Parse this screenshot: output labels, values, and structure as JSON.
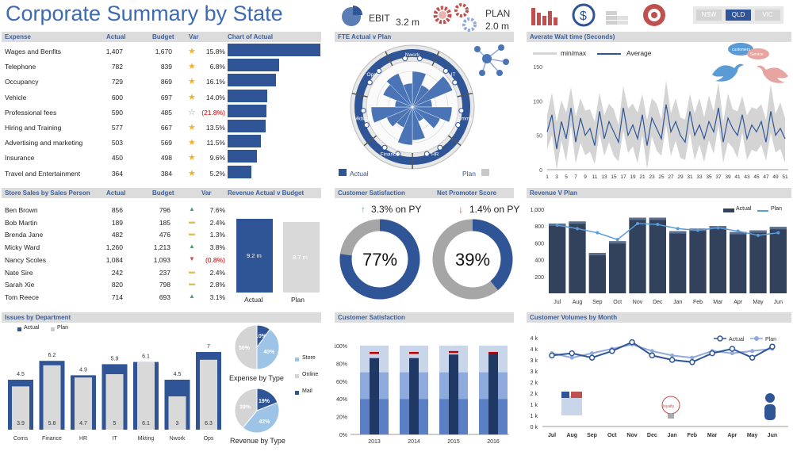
{
  "title": "Corporate Summary by State",
  "kpi": {
    "ebit_label": "EBIT",
    "ebit_value": "3.2 m",
    "plan_label": "PLAN",
    "plan_value": "2.0 m"
  },
  "states": [
    "NSW",
    "QLD",
    "VIC"
  ],
  "selected_state": "QLD",
  "colors": {
    "accent": "#2f5597",
    "dark": "#32425c",
    "grey": "#d9d9d9",
    "title": "#3e6ab0"
  },
  "expense": {
    "headers": [
      "Expense",
      "Actual",
      "Budget",
      "Var",
      "Chart of Actual"
    ],
    "rows": [
      {
        "name": "Wages and Benfits",
        "actual": "1,407",
        "budget": "1,670",
        "var": "15.8%",
        "v": 1407
      },
      {
        "name": "Telephone",
        "actual": "782",
        "budget": "839",
        "var": "6.8%",
        "v": 782
      },
      {
        "name": "Occupancy",
        "actual": "729",
        "budget": "869",
        "var": "16.1%",
        "v": 729
      },
      {
        "name": "Vehicle",
        "actual": "600",
        "budget": "697",
        "var": "14.0%",
        "v": 600
      },
      {
        "name": "Professional fees",
        "actual": "590",
        "budget": "485",
        "var": "(21.8%)",
        "v": 590
      },
      {
        "name": "Hiring and Training",
        "actual": "577",
        "budget": "667",
        "var": "13.5%",
        "v": 577
      },
      {
        "name": "Advertising and marketing",
        "actual": "503",
        "budget": "569",
        "var": "11.5%",
        "v": 503
      },
      {
        "name": "Insurance",
        "actual": "450",
        "budget": "498",
        "var": "9.6%",
        "v": 450
      },
      {
        "name": "Travel and Entertainment",
        "actual": "364",
        "budget": "384",
        "var": "5.2%",
        "v": 364
      }
    ]
  },
  "sales": {
    "headers": [
      "Store Sales by Sales Person",
      "Actual",
      "Budget",
      "Var",
      "Revenue Actual v Budget"
    ],
    "rows": [
      {
        "name": "Ben Brown",
        "actual": "856",
        "budget": "796",
        "var": "7.6%"
      },
      {
        "name": "Bob Martin",
        "actual": "189",
        "budget": "185",
        "var": "2.4%"
      },
      {
        "name": "Brenda Jane",
        "actual": "482",
        "budget": "476",
        "var": "1.3%"
      },
      {
        "name": "Micky Ward",
        "actual": "1,260",
        "budget": "1,213",
        "var": "3.8%"
      },
      {
        "name": "Nancy Scoles",
        "actual": "1,084",
        "budget": "1,093",
        "var": "(0.8%)"
      },
      {
        "name": "Nate Sire",
        "actual": "242",
        "budget": "237",
        "var": "2.4%"
      },
      {
        "name": "Sarah Xie",
        "actual": "820",
        "budget": "798",
        "var": "2.8%"
      },
      {
        "name": "Tom Reece",
        "actual": "714",
        "budget": "693",
        "var": "3.1%"
      }
    ],
    "actual_label": "9.2 m",
    "plan_label": "8.7 m",
    "x_actual": "Actual",
    "x_plan": "Plan"
  },
  "fte": {
    "title": "FTE Actual v Plan",
    "segments": [
      "Nwork",
      "IT",
      "Comms",
      "HR",
      "Finance",
      "Mkting",
      "Ops"
    ],
    "legend_actual": "Actual",
    "legend_plan": "Plan"
  },
  "wait": {
    "title": "Averate Wait time (Seconds)",
    "legend_minmax": "min/max",
    "legend_avg": "Average",
    "yticks": [
      "0",
      "50",
      "100",
      "150"
    ],
    "xticks": [
      "1",
      "3",
      "5",
      "7",
      "9",
      "11",
      "13",
      "15",
      "17",
      "19",
      "21",
      "23",
      "25",
      "27",
      "29",
      "31",
      "33",
      "35",
      "37",
      "39",
      "41",
      "43",
      "45",
      "47",
      "49",
      "51"
    ],
    "avg": [
      55,
      80,
      30,
      70,
      45,
      90,
      40,
      75,
      50,
      60,
      35,
      85,
      45,
      70,
      55,
      40,
      90,
      50,
      65,
      45,
      80,
      35,
      75,
      60,
      45,
      95,
      55,
      70,
      50,
      40,
      85,
      50,
      65,
      45,
      70,
      55,
      90,
      40,
      75,
      60,
      50,
      80,
      45,
      65,
      55,
      70,
      40,
      85,
      50,
      60,
      45
    ],
    "tweet1": "customers",
    "tweet2": "Service"
  },
  "satisfaction": {
    "title": "Customer Satisfaction",
    "value": "77%",
    "pct": 77,
    "change": "3.3% on PY"
  },
  "nps": {
    "title": "Net Promoter Score",
    "value": "39%",
    "pct": 39,
    "change": "1.4% on PY"
  },
  "revenue": {
    "title": "Revenue V Plan",
    "legend_actual": "Actual",
    "legend_plan": "Plan",
    "yticks": [
      "200",
      "400",
      "600",
      "800",
      "1,000"
    ],
    "months": [
      "Jul",
      "Aug",
      "Sep",
      "Oct",
      "Nov",
      "Dec",
      "Jan",
      "Feb",
      "Mar",
      "Apr",
      "May",
      "Jun"
    ],
    "actual": [
      830,
      855,
      480,
      620,
      900,
      900,
      740,
      770,
      800,
      730,
      750,
      790
    ],
    "plan": [
      810,
      770,
      720,
      640,
      830,
      820,
      770,
      750,
      780,
      740,
      690,
      720
    ]
  },
  "issues": {
    "title": "Issues by Department",
    "legend_actual": "Actual",
    "legend_plan": "Plan",
    "depts": [
      "Coms",
      "Finance",
      "HR",
      "IT",
      "Mkting",
      "Nwork",
      "Ops"
    ],
    "actual": [
      4.5,
      6.2,
      4.9,
      5.9,
      6.1,
      4.5,
      7
    ],
    "plan": [
      3.9,
      5.8,
      4.7,
      5,
      6.1,
      3,
      6.3
    ],
    "actual_labels": [
      "4.5",
      "6.2",
      "4.9",
      "5.9",
      "6.1",
      "4.5",
      "7"
    ],
    "plan_labels": [
      "3.9",
      "5.8",
      "4.7",
      "5",
      "6.1",
      "3",
      "6.3"
    ],
    "expense_type": {
      "title": "Expense by Type",
      "values": [
        10,
        40,
        50
      ],
      "labels": [
        "10%",
        "40%",
        "50%"
      ]
    },
    "revenue_type": {
      "title": "Revenue  by Type",
      "values": [
        19,
        42,
        39
      ],
      "labels": [
        "19%",
        "42%",
        "39%"
      ]
    },
    "legend": [
      "Store",
      "Online",
      "Mail"
    ]
  },
  "cs_stack": {
    "title": "Customer Satisfaction",
    "yticks": [
      "0%",
      "20%",
      "40%",
      "60%",
      "80%",
      "100%"
    ],
    "years": [
      "2013",
      "2014",
      "2015",
      "2016"
    ],
    "dark": [
      86,
      86,
      90,
      92
    ],
    "target": [
      92,
      92,
      93,
      92
    ]
  },
  "volumes": {
    "title": "Customer Volumes by Month",
    "legend_actual": "Actual",
    "legend_plan": "Plan",
    "yticks": [
      "0 k",
      "1 k",
      "1 k",
      "2 k",
      "2 k",
      "3 k",
      "3 k",
      "4 k",
      "4 k"
    ],
    "months": [
      "Jul",
      "Aug",
      "Sep",
      "Oct",
      "Nov",
      "Dec",
      "Jan",
      "Feb",
      "Mar",
      "Apr",
      "May",
      "Jun"
    ],
    "actual": [
      3.2,
      3.3,
      3.1,
      3.4,
      3.8,
      3.2,
      3.0,
      2.9,
      3.3,
      3.5,
      3.1,
      3.6
    ],
    "plan": [
      3.3,
      3.1,
      3.3,
      3.5,
      3.7,
      3.4,
      3.2,
      3.1,
      3.4,
      3.3,
      3.4,
      3.5
    ],
    "loyalty": "loyalty"
  }
}
